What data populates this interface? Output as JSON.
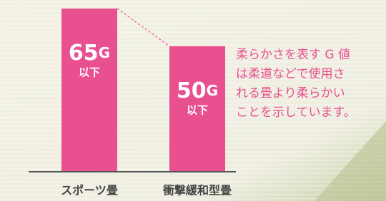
{
  "chart_data": {
    "type": "bar",
    "categories": [
      "スポーツ畳",
      "衝撃緩和型畳"
    ],
    "values": [
      65,
      50
    ],
    "value_labels": [
      "65G",
      "50G"
    ],
    "value_label_notes": [
      "以下",
      "以下"
    ],
    "color": "#e8508f",
    "ylim": [
      0,
      65
    ],
    "annotation": [
      "柔らかさを表す G 値",
      "は柔道などで使用さ",
      "れる畳より柔らかい",
      "ことを示しています。"
    ]
  }
}
